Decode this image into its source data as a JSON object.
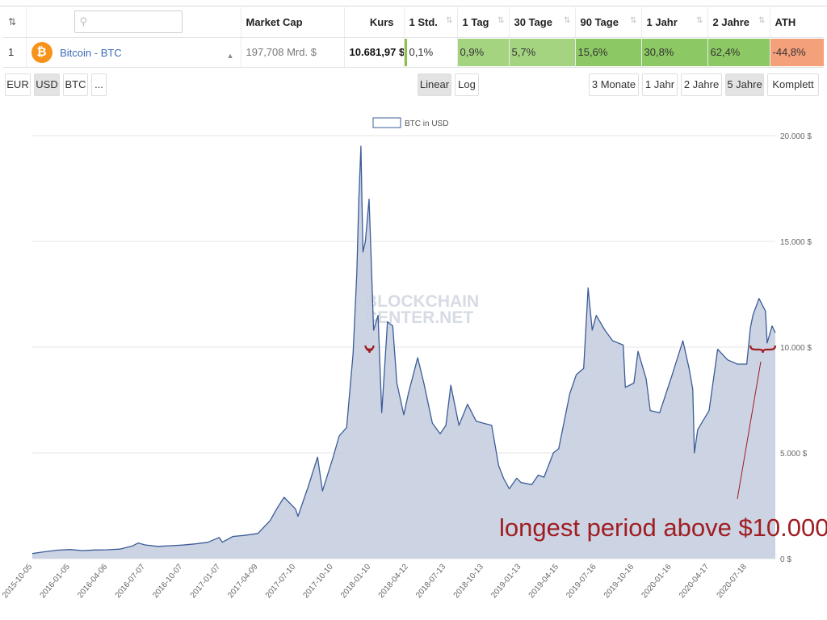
{
  "table": {
    "columns": [
      {
        "label": "",
        "key": "rank"
      },
      {
        "label": "",
        "key": "search"
      },
      {
        "label": "Market Cap"
      },
      {
        "label": "Kurs"
      },
      {
        "label": "1 Std."
      },
      {
        "label": "1 Tag"
      },
      {
        "label": "30 Tage"
      },
      {
        "label": "90 Tage"
      },
      {
        "label": "1 Jahr"
      },
      {
        "label": "2 Jahre"
      },
      {
        "label": "ATH"
      }
    ],
    "sort_icon": "sort-arrows-icon",
    "row": {
      "rank": "1",
      "coin_icon": "bitcoin-icon",
      "coin_symbol_glyph": "₿",
      "coin_name": "Bitcoin - BTC",
      "market_cap": "197,708 Mrd. $",
      "kurs": "10.681,97 $",
      "std1": "0,1%",
      "tag1": "0,9%",
      "tage30": "5,7%",
      "tage90": "15,6%",
      "jahr1": "30,8%",
      "jahre2": "62,4%",
      "ath": "-44,8%"
    },
    "colors": {
      "positive": "#8cc863",
      "negative": "#f4a07b"
    }
  },
  "currency_buttons": [
    "EUR",
    "USD",
    "BTC",
    "..."
  ],
  "currency_active": "USD",
  "scale_buttons": [
    "Linear",
    "Log"
  ],
  "scale_active": "Linear",
  "range_buttons": [
    "3 Monate",
    "1 Jahr",
    "2 Jahre",
    "5 Jahre",
    "Komplett"
  ],
  "range_active": "5 Jahre",
  "watermark": [
    "BLOCKCHAIN",
    "CENTER.NET"
  ],
  "annotation": "longest period above $10.000",
  "chart_data": {
    "type": "area",
    "series": [
      {
        "name": "BTC in USD",
        "color": "#3b5c98",
        "fill": "#c9d1e2"
      }
    ],
    "xlabel": "",
    "ylabel": "",
    "ylim": [
      0,
      20000
    ],
    "y_ticks": [
      "0 $",
      "5.000 $",
      "10.000 $",
      "15.000 $",
      "20.000 $"
    ],
    "x_ticks": [
      "2015-10-05",
      "2016-01-05",
      "2016-04-06",
      "2016-07-07",
      "2016-10-07",
      "2017-01-07",
      "2017-04-09",
      "2017-07-10",
      "2017-10-10",
      "2018-01-10",
      "2018-04-12",
      "2018-07-13",
      "2018-10-13",
      "2019-01-13",
      "2019-04-15",
      "2019-07-16",
      "2019-10-16",
      "2020-01-16",
      "2020-04-17",
      "2020-07-18"
    ],
    "grid": true,
    "legend": "top-center",
    "x": [
      "2015-10-05",
      "2015-11-05",
      "2015-12-05",
      "2016-01-05",
      "2016-02-05",
      "2016-03-05",
      "2016-04-06",
      "2016-05-06",
      "2016-06-06",
      "2016-06-20",
      "2016-07-07",
      "2016-08-07",
      "2016-09-07",
      "2016-10-07",
      "2016-11-07",
      "2016-12-07",
      "2017-01-04",
      "2017-01-12",
      "2017-02-07",
      "2017-03-07",
      "2017-04-09",
      "2017-05-09",
      "2017-05-25",
      "2017-06-12",
      "2017-07-10",
      "2017-07-16",
      "2017-08-10",
      "2017-09-02",
      "2017-09-14",
      "2017-10-10",
      "2017-10-25",
      "2017-11-12",
      "2017-11-28",
      "2017-12-07",
      "2017-12-12",
      "2017-12-17",
      "2017-12-22",
      "2017-12-28",
      "2018-01-06",
      "2018-01-10",
      "2018-01-17",
      "2018-01-28",
      "2018-02-06",
      "2018-02-20",
      "2018-03-05",
      "2018-03-15",
      "2018-04-01",
      "2018-04-12",
      "2018-05-05",
      "2018-05-20",
      "2018-06-10",
      "2018-06-29",
      "2018-07-13",
      "2018-07-25",
      "2018-08-14",
      "2018-09-04",
      "2018-09-25",
      "2018-10-13",
      "2018-11-02",
      "2018-11-19",
      "2018-12-01",
      "2018-12-15",
      "2019-01-02",
      "2019-01-13",
      "2019-02-08",
      "2019-02-24",
      "2019-03-10",
      "2019-04-02",
      "2019-04-15",
      "2019-05-12",
      "2019-05-28",
      "2019-06-15",
      "2019-06-26",
      "2019-07-06",
      "2019-07-16",
      "2019-08-06",
      "2019-08-25",
      "2019-09-20",
      "2019-09-25",
      "2019-10-16",
      "2019-10-26",
      "2019-11-15",
      "2019-11-25",
      "2019-12-18",
      "2020-01-16",
      "2020-02-13",
      "2020-02-28",
      "2020-03-08",
      "2020-03-12",
      "2020-03-20",
      "2020-04-17",
      "2020-04-30",
      "2020-05-08",
      "2020-06-01",
      "2020-06-25",
      "2020-07-18",
      "2020-07-27",
      "2020-08-02",
      "2020-08-17",
      "2020-09-02",
      "2020-09-06",
      "2020-09-18",
      "2020-09-26"
    ],
    "y": [
      240,
      330,
      400,
      430,
      380,
      410,
      420,
      450,
      600,
      740,
      650,
      580,
      610,
      640,
      700,
      770,
      1000,
      780,
      1050,
      1100,
      1190,
      1800,
      2350,
      2900,
      2350,
      2000,
      3400,
      4800,
      3200,
      4800,
      5800,
      6200,
      9700,
      13500,
      17000,
      19500,
      14500,
      15000,
      17000,
      14800,
      10800,
      11500,
      6900,
      11200,
      11000,
      8300,
      6800,
      7800,
      9500,
      8300,
      6400,
      5900,
      6300,
      8200,
      6300,
      7300,
      6500,
      6400,
      6300,
      4400,
      3800,
      3300,
      3800,
      3600,
      3500,
      3950,
      3850,
      5000,
      5200,
      7800,
      8700,
      9000,
      12800,
      10800,
      11500,
      10800,
      10300,
      10100,
      8100,
      8300,
      9800,
      8500,
      7000,
      6900,
      8600,
      10300,
      9000,
      8000,
      5000,
      6100,
      7000,
      8800,
      9900,
      9400,
      9200,
      9200,
      10900,
      11500,
      12300,
      11700,
      10200,
      11000,
      10680
    ],
    "highlights": [
      {
        "from": "2017-12-28",
        "to": "2018-01-17",
        "value": 10000
      },
      {
        "from": "2020-07-27",
        "to": "2020-09-26",
        "value": 10000
      }
    ]
  }
}
